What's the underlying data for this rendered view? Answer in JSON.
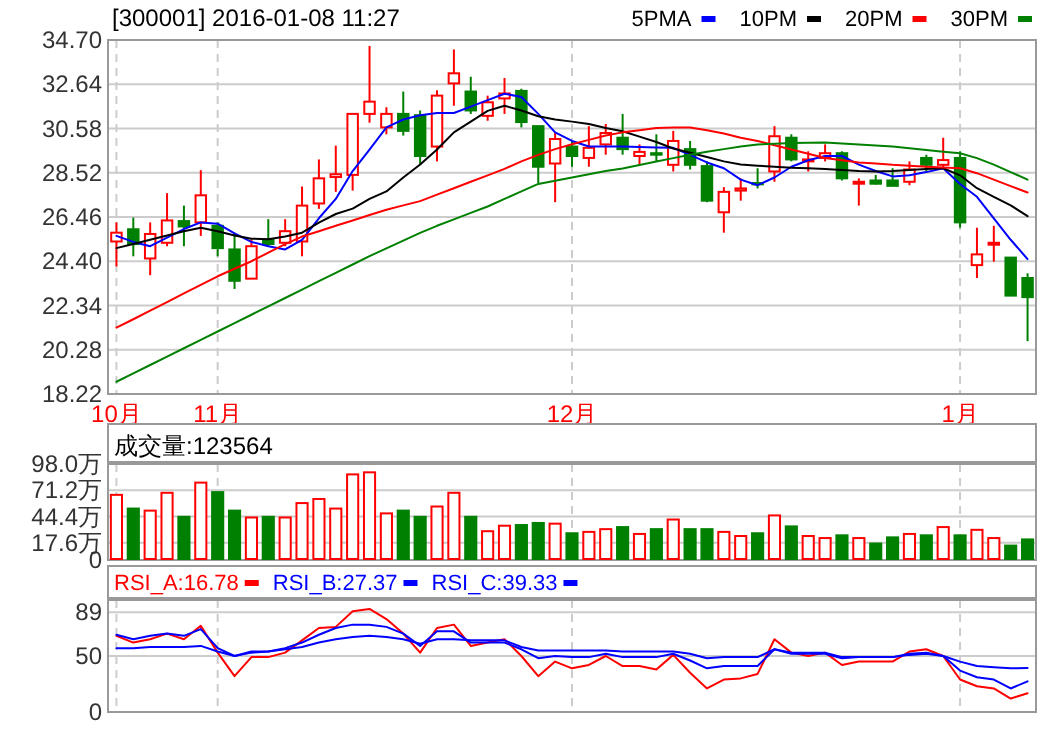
{
  "chart_data": [
    {
      "type": "candlestick",
      "title": "[300001] 2016-01-08 11:27",
      "categories": [
        "10月",
        null,
        null,
        null,
        null,
        null,
        "11月",
        null,
        null,
        null,
        null,
        null,
        null,
        null,
        null,
        null,
        null,
        null,
        null,
        null,
        null,
        null,
        null,
        null,
        null,
        null,
        null,
        "12月",
        null,
        null,
        null,
        null,
        null,
        null,
        null,
        null,
        null,
        null,
        null,
        null,
        null,
        null,
        null,
        null,
        null,
        null,
        null,
        null,
        null,
        null,
        "1月",
        null,
        null,
        null,
        null
      ],
      "ohlc": [
        [
          25.32,
          26.21,
          24.16,
          25.73
        ],
        [
          25.89,
          26.43,
          24.63,
          25.2
        ],
        [
          24.53,
          26.21,
          23.75,
          25.67
        ],
        [
          25.26,
          27.57,
          25.1,
          26.3
        ],
        [
          26.27,
          26.99,
          25.1,
          26.02
        ],
        [
          26.21,
          28.64,
          25.58,
          27.47
        ],
        [
          26.05,
          26.21,
          24.63,
          25.01
        ],
        [
          24.95,
          25.73,
          23.11,
          23.49
        ],
        [
          23.59,
          25.42,
          23.59,
          25.1
        ],
        [
          25.42,
          26.36,
          25.1,
          25.2
        ],
        [
          25.26,
          26.36,
          25.1,
          25.8
        ],
        [
          25.32,
          27.88,
          24.63,
          26.99
        ],
        [
          27.09,
          29.14,
          26.84,
          28.26
        ],
        [
          28.32,
          29.78,
          27.63,
          28.45
        ],
        [
          28.42,
          31.26,
          27.69,
          31.26
        ],
        [
          31.26,
          34.42,
          30.85,
          31.83
        ],
        [
          30.63,
          31.57,
          30.31,
          31.26
        ],
        [
          31.26,
          32.3,
          30.25,
          30.47
        ],
        [
          31.2,
          31.42,
          28.89,
          29.3
        ],
        [
          29.74,
          32.36,
          29.05,
          32.11
        ],
        [
          32.68,
          34.26,
          31.64,
          33.15
        ],
        [
          32.3,
          32.99,
          31.26,
          31.42
        ],
        [
          31.17,
          32.11,
          30.94,
          31.8
        ],
        [
          31.98,
          32.93,
          31.26,
          32.21
        ],
        [
          32.33,
          32.43,
          30.63,
          30.88
        ],
        [
          30.69,
          30.69,
          28.04,
          28.8
        ],
        [
          28.95,
          30.41,
          27.15,
          30.09
        ],
        [
          29.74,
          30.0,
          28.8,
          29.3
        ],
        [
          29.21,
          30.69,
          28.8,
          29.68
        ],
        [
          29.84,
          30.79,
          29.36,
          30.37
        ],
        [
          30.15,
          31.26,
          29.36,
          29.62
        ],
        [
          29.3,
          29.84,
          28.89,
          29.49
        ],
        [
          29.43,
          30.31,
          29.05,
          29.36
        ],
        [
          28.89,
          30.47,
          28.58,
          30.0
        ],
        [
          29.62,
          30.0,
          28.67,
          28.89
        ],
        [
          28.83,
          29.05,
          27.15,
          27.22
        ],
        [
          26.68,
          27.85,
          25.73,
          27.63
        ],
        [
          27.69,
          28.26,
          27.22,
          27.79
        ],
        [
          28.04,
          28.73,
          27.79,
          27.98
        ],
        [
          28.58,
          30.69,
          28.1,
          30.22
        ],
        [
          30.15,
          30.31,
          29.05,
          29.14
        ],
        [
          29.05,
          29.52,
          28.58,
          29.14
        ],
        [
          29.21,
          29.84,
          29.05,
          29.43
        ],
        [
          29.43,
          29.52,
          28.16,
          28.26
        ],
        [
          28.01,
          28.26,
          26.99,
          28.1
        ],
        [
          28.16,
          28.42,
          27.97,
          28.01
        ],
        [
          28.16,
          28.73,
          27.91,
          27.91
        ],
        [
          28.1,
          29.05,
          27.94,
          28.67
        ],
        [
          29.21,
          29.36,
          28.58,
          28.89
        ],
        [
          28.89,
          30.15,
          28.73,
          29.11
        ],
        [
          29.21,
          29.52,
          25.96,
          26.21
        ],
        [
          24.22,
          25.96,
          23.62,
          24.72
        ],
        [
          25.17,
          26.05,
          24.38,
          25.26
        ],
        [
          24.57,
          24.57,
          22.8,
          22.8
        ],
        [
          23.62,
          23.84,
          20.68,
          22.73
        ]
      ],
      "series": [
        {
          "name": "5PMA",
          "type": "line",
          "color": "#0000ff",
          "values": [
            25.58,
            25.3,
            25.1,
            25.5,
            25.9,
            26.21,
            26.15,
            25.7,
            25.3,
            25.1,
            24.95,
            25.4,
            26.4,
            27.3,
            28.6,
            29.6,
            30.63,
            31.0,
            31.2,
            31.3,
            31.3,
            31.6,
            31.9,
            32.2,
            32.05,
            31.26,
            30.4,
            30.0,
            29.74,
            29.74,
            29.74,
            29.72,
            29.7,
            29.68,
            29.35,
            29.0,
            28.73,
            28.2,
            27.94,
            28.3,
            28.8,
            29.1,
            29.3,
            29.3,
            28.9,
            28.6,
            28.35,
            28.4,
            28.55,
            28.73,
            28.0,
            27.4,
            26.4,
            25.4,
            24.5
          ]
        },
        {
          "name": "10PM",
          "type": "line",
          "color": "#000000",
          "values": [
            25.01,
            25.2,
            25.4,
            25.6,
            25.8,
            25.96,
            25.8,
            25.6,
            25.45,
            25.42,
            25.55,
            25.73,
            26.2,
            26.6,
            26.85,
            27.3,
            27.65,
            28.3,
            28.9,
            29.6,
            30.4,
            30.9,
            31.4,
            31.64,
            31.42,
            31.15,
            31.0,
            30.9,
            30.79,
            30.6,
            30.45,
            30.2,
            29.95,
            29.65,
            29.45,
            29.25,
            29.05,
            28.9,
            28.85,
            28.8,
            28.75,
            28.73,
            28.7,
            28.65,
            28.6,
            28.58,
            28.6,
            28.65,
            28.7,
            28.73,
            28.4,
            27.8,
            27.4,
            27.0,
            26.5
          ]
        },
        {
          "name": "20PM",
          "type": "line",
          "color": "#ff0000",
          "values": [
            21.31,
            21.7,
            22.1,
            22.5,
            22.9,
            23.3,
            23.7,
            24.05,
            24.4,
            24.8,
            25.2,
            25.55,
            25.8,
            26.05,
            26.3,
            26.55,
            26.8,
            27.0,
            27.2,
            27.5,
            27.8,
            28.1,
            28.4,
            28.7,
            29.05,
            29.35,
            29.62,
            29.85,
            30.05,
            30.25,
            30.4,
            30.5,
            30.6,
            30.63,
            30.63,
            30.5,
            30.35,
            30.15,
            30.0,
            29.8,
            29.6,
            29.4,
            29.21,
            29.1,
            29.0,
            28.95,
            28.89,
            28.85,
            28.8,
            28.76,
            28.73,
            28.5,
            28.2,
            27.9,
            27.6
          ]
        },
        {
          "name": "30PM",
          "type": "line",
          "color": "#008000",
          "values": [
            18.79,
            19.18,
            19.57,
            19.96,
            20.35,
            20.74,
            21.13,
            21.52,
            21.91,
            22.3,
            22.69,
            23.08,
            23.47,
            23.86,
            24.25,
            24.64,
            25.0,
            25.36,
            25.72,
            26.05,
            26.35,
            26.65,
            26.95,
            27.3,
            27.65,
            28.0,
            28.15,
            28.3,
            28.45,
            28.6,
            28.72,
            28.88,
            29.04,
            29.2,
            29.36,
            29.5,
            29.62,
            29.74,
            29.84,
            29.87,
            29.9,
            29.92,
            29.93,
            29.88,
            29.84,
            29.79,
            29.74,
            29.66,
            29.58,
            29.5,
            29.43,
            29.2,
            28.9,
            28.55,
            28.2
          ]
        }
      ],
      "ylim": [
        18.22,
        34.7
      ],
      "yticks": [
        {
          "value": 18.22,
          "label": "18.22"
        },
        {
          "value": 20.28,
          "label": "20.28"
        },
        {
          "value": 22.34,
          "label": "22.34"
        },
        {
          "value": 24.4,
          "label": "24.40"
        },
        {
          "value": 26.46,
          "label": "26.46"
        },
        {
          "value": 28.52,
          "label": "28.52"
        },
        {
          "value": 30.58,
          "label": "30.58"
        },
        {
          "value": 32.64,
          "label": "32.64"
        },
        {
          "value": 34.7,
          "label": "34.70"
        }
      ],
      "grid": true,
      "legend": "top right"
    },
    {
      "type": "bar",
      "title": "成交量:123564",
      "categories": [
        null,
        null,
        null,
        null,
        null,
        null,
        null,
        null,
        null,
        null,
        null,
        null,
        null,
        null,
        null,
        null,
        null,
        null,
        null,
        null,
        null,
        null,
        null,
        null,
        null,
        null,
        null,
        null,
        null,
        null,
        null,
        null,
        null,
        null,
        null,
        null,
        null,
        null,
        null,
        null,
        null,
        null,
        null,
        null,
        null,
        null,
        null,
        null,
        null,
        null,
        null,
        null,
        null,
        null,
        null
      ],
      "values": [
        66.5,
        52.5,
        50.4,
        68.6,
        44.1,
        79.0,
        69.3,
        50.4,
        43.4,
        44.1,
        43.4,
        58.1,
        62.3,
        52.5,
        87.4,
        89.5,
        47.6,
        50.4,
        44.1,
        54.6,
        68.6,
        44.1,
        29.4,
        35.0,
        35.7,
        37.8,
        37.1,
        27.3,
        28.7,
        31.5,
        33.6,
        26.6,
        31.5,
        41.3,
        31.5,
        31.5,
        28.7,
        24.5,
        27.3,
        45.5,
        34.3,
        24.5,
        22.4,
        25.2,
        22.4,
        16.8,
        23.1,
        26.6,
        25.2,
        33.6,
        25.2,
        30.8,
        22.4,
        14.7,
        21.0
      ],
      "colors": [
        "#ff0000",
        "#008000",
        "#ff0000",
        "#ff0000",
        "#008000",
        "#ff0000",
        "#008000",
        "#008000",
        "#ff0000",
        "#008000",
        "#ff0000",
        "#ff0000",
        "#ff0000",
        "#ff0000",
        "#ff0000",
        "#ff0000",
        "#ff0000",
        "#008000",
        "#008000",
        "#ff0000",
        "#ff0000",
        "#008000",
        "#ff0000",
        "#ff0000",
        "#008000",
        "#008000",
        "#ff0000",
        "#008000",
        "#ff0000",
        "#ff0000",
        "#008000",
        "#ff0000",
        "#008000",
        "#ff0000",
        "#008000",
        "#008000",
        "#ff0000",
        "#ff0000",
        "#008000",
        "#ff0000",
        "#008000",
        "#ff0000",
        "#ff0000",
        "#008000",
        "#ff0000",
        "#008000",
        "#008000",
        "#ff0000",
        "#008000",
        "#ff0000",
        "#008000",
        "#ff0000",
        "#ff0000",
        "#008000",
        "#008000"
      ],
      "ylim": [
        0,
        98
      ],
      "yticks": [
        0,
        {
          "value": 17.6,
          "label": "17.6万"
        },
        {
          "value": 44.4,
          "label": "44.4万"
        },
        {
          "value": 71.2,
          "label": "71.2万"
        },
        {
          "value": 98.0,
          "label": "98.0万"
        }
      ],
      "grid": true,
      "tick_labels": "y"
    },
    {
      "type": "line",
      "categories": [
        null,
        null,
        null,
        null,
        null,
        null,
        null,
        null,
        null,
        null,
        null,
        null,
        null,
        null,
        null,
        null,
        null,
        null,
        null,
        null,
        null,
        null,
        null,
        null,
        null,
        null,
        null,
        null,
        null,
        null,
        null,
        null,
        null,
        null,
        null,
        null,
        null,
        null,
        null,
        null,
        null,
        null,
        null,
        null,
        null,
        null,
        null,
        null,
        null,
        null,
        null,
        null,
        null,
        null,
        null
      ],
      "series": [
        {
          "name": "RSI_A:16.78",
          "color": "#ff0000",
          "values": [
            68,
            62,
            65,
            70,
            65,
            77,
            53,
            32,
            49,
            49,
            53,
            64,
            75,
            76,
            90,
            92,
            83,
            70,
            53,
            75,
            78,
            59,
            62,
            65,
            50,
            32,
            45,
            39,
            42,
            50,
            41,
            41,
            38,
            51,
            35,
            21,
            29,
            30,
            34,
            65,
            53,
            50,
            53,
            42,
            45,
            45,
            45,
            54,
            56,
            50,
            29,
            23,
            21,
            12,
            16.78
          ]
        },
        {
          "name": "RSI_B:27.37",
          "color": "#0000ff",
          "values": [
            69,
            65,
            68,
            70,
            68,
            74,
            57,
            50,
            54,
            54,
            57,
            62,
            69,
            75,
            78,
            78,
            76,
            70,
            59,
            72,
            72,
            62,
            62,
            62,
            56,
            48,
            50,
            49,
            49,
            52,
            49,
            49,
            49,
            52,
            46,
            39,
            41,
            41,
            41,
            56,
            52,
            52,
            52,
            48,
            49,
            49,
            49,
            52,
            53,
            50,
            37,
            31,
            29,
            21,
            27.37
          ]
        },
        {
          "name": "RSI_C:39.33",
          "color": "#0000ff",
          "values": [
            57,
            57,
            58,
            58,
            58,
            59,
            54,
            50,
            53,
            54,
            56,
            58,
            62,
            65,
            67,
            68,
            67,
            65,
            61,
            65,
            65,
            64,
            64,
            64,
            58,
            55,
            55,
            55,
            55,
            55,
            54,
            54,
            54,
            54,
            52,
            48,
            49,
            49,
            49,
            56,
            53,
            53,
            53,
            49,
            49,
            49,
            49,
            51,
            52,
            50,
            45,
            41,
            40,
            39,
            39.33
          ]
        }
      ],
      "ylim": [
        0,
        100
      ],
      "yticks": [
        0,
        50,
        89
      ],
      "grid": true,
      "legend": "top left",
      "tick_labels": "y"
    }
  ]
}
